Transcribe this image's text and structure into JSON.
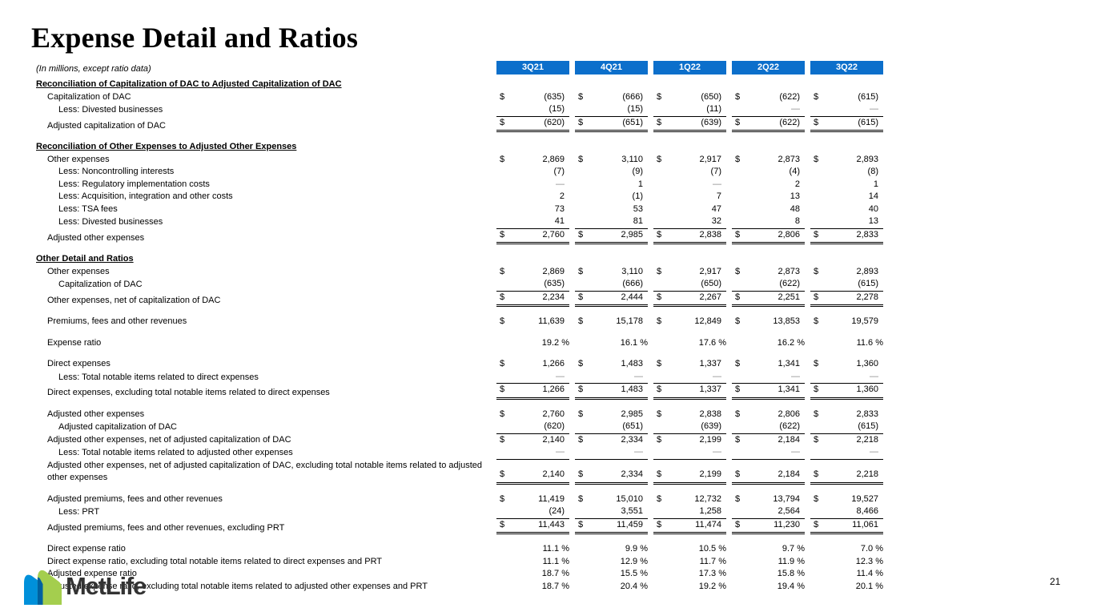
{
  "slide": {
    "title": "Expense Detail and Ratios",
    "note": "(In millions, except ratio data)",
    "page_number": "21",
    "accent_color": "#0C6FCB",
    "logo": {
      "text": "MetLife",
      "blue": "#0090DA",
      "green": "#A4CE4E",
      "dark": "#0061A0"
    }
  },
  "table": {
    "columns": [
      "3Q21",
      "4Q21",
      "1Q22",
      "2Q22",
      "3Q22"
    ],
    "rows": [
      {
        "type": "section",
        "label": "Reconciliation of Capitalization of DAC to Adjusted Capitalization of DAC"
      },
      {
        "type": "data",
        "label": "Capitalization of DAC",
        "indent": 1,
        "dollar": true,
        "values": [
          "(635)",
          "(666)",
          "(650)",
          "(622)",
          "(615)"
        ]
      },
      {
        "type": "data",
        "label": "Less: Divested businesses",
        "indent": 2,
        "rule": true,
        "values": [
          "(15)",
          "(15)",
          "(11)",
          "—",
          "—"
        ]
      },
      {
        "type": "data",
        "label": "Adjusted capitalization of DAC",
        "indent": 1,
        "dollar": true,
        "total": true,
        "values": [
          "(620)",
          "(651)",
          "(639)",
          "(622)",
          "(615)"
        ]
      },
      {
        "type": "section",
        "label": "Reconciliation of Other Expenses to Adjusted Other Expenses",
        "gap": true
      },
      {
        "type": "data",
        "label": "Other expenses",
        "indent": 1,
        "dollar": true,
        "values": [
          "2,869",
          "3,110",
          "2,917",
          "2,873",
          "2,893"
        ]
      },
      {
        "type": "data",
        "label": "Less: Noncontrolling interests",
        "indent": 2,
        "values": [
          "(7)",
          "(9)",
          "(7)",
          "(4)",
          "(8)"
        ]
      },
      {
        "type": "data",
        "label": "Less: Regulatory implementation costs",
        "indent": 2,
        "values": [
          "—",
          "1",
          "—",
          "2",
          "1"
        ]
      },
      {
        "type": "data",
        "label": "Less: Acquisition, integration and other costs",
        "indent": 2,
        "values": [
          "2",
          "(1)",
          "7",
          "13",
          "14"
        ]
      },
      {
        "type": "data",
        "label": "Less: TSA fees",
        "indent": 2,
        "values": [
          "73",
          "53",
          "47",
          "48",
          "40"
        ]
      },
      {
        "type": "data",
        "label": "Less: Divested businesses",
        "indent": 2,
        "rule": true,
        "values": [
          "41",
          "81",
          "32",
          "8",
          "13"
        ]
      },
      {
        "type": "data",
        "label": "Adjusted other expenses",
        "indent": 1,
        "dollar": true,
        "total": true,
        "values": [
          "2,760",
          "2,985",
          "2,838",
          "2,806",
          "2,833"
        ]
      },
      {
        "type": "section",
        "label": "Other Detail and Ratios",
        "gap": true
      },
      {
        "type": "data",
        "label": "Other expenses",
        "indent": 1,
        "dollar": true,
        "values": [
          "2,869",
          "3,110",
          "2,917",
          "2,873",
          "2,893"
        ]
      },
      {
        "type": "data",
        "label": "Capitalization of DAC",
        "indent": 2,
        "rule": true,
        "values": [
          "(635)",
          "(666)",
          "(650)",
          "(622)",
          "(615)"
        ]
      },
      {
        "type": "data",
        "label": "Other expenses, net of capitalization of DAC",
        "indent": 1,
        "dollar": true,
        "total": true,
        "values": [
          "2,234",
          "2,444",
          "2,267",
          "2,251",
          "2,278"
        ]
      },
      {
        "type": "data",
        "label": "Premiums, fees and other revenues",
        "indent": 1,
        "dollar": true,
        "gap": true,
        "values": [
          "11,639",
          "15,178",
          "12,849",
          "13,853",
          "19,579"
        ]
      },
      {
        "type": "data",
        "label": "Expense ratio",
        "indent": 1,
        "gap": true,
        "values": [
          "19.2 %",
          "16.1 %",
          "17.6 %",
          "16.2 %",
          "11.6 %"
        ]
      },
      {
        "type": "data",
        "label": "Direct expenses",
        "indent": 1,
        "dollar": true,
        "gap": true,
        "values": [
          "1,266",
          "1,483",
          "1,337",
          "1,341",
          "1,360"
        ]
      },
      {
        "type": "data",
        "label": "Less: Total notable items related to direct expenses",
        "indent": 2,
        "rule": true,
        "values": [
          "—",
          "—",
          "—",
          "—",
          "—"
        ]
      },
      {
        "type": "data",
        "label": "Direct expenses, excluding total notable items related to direct expenses",
        "indent": 1,
        "dollar": true,
        "total": true,
        "values": [
          "1,266",
          "1,483",
          "1,337",
          "1,341",
          "1,360"
        ]
      },
      {
        "type": "data",
        "label": "Adjusted other expenses",
        "indent": 1,
        "dollar": true,
        "gap": true,
        "values": [
          "2,760",
          "2,985",
          "2,838",
          "2,806",
          "2,833"
        ]
      },
      {
        "type": "data",
        "label": "Adjusted capitalization of DAC",
        "indent": 2,
        "rule": true,
        "values": [
          "(620)",
          "(651)",
          "(639)",
          "(622)",
          "(615)"
        ]
      },
      {
        "type": "data",
        "label": "Adjusted other expenses, net of adjusted capitalization of DAC",
        "indent": 1,
        "dollar": true,
        "values": [
          "2,140",
          "2,334",
          "2,199",
          "2,184",
          "2,218"
        ]
      },
      {
        "type": "data",
        "label": "Less: Total notable items related to adjusted other expenses",
        "indent": 2,
        "rule": true,
        "values": [
          "—",
          "—",
          "—",
          "—",
          "—"
        ]
      },
      {
        "type": "data",
        "label": "Adjusted other expenses, net of adjusted capitalization of DAC, excluding total notable items related to adjusted other expenses",
        "indent": 1,
        "dollar": true,
        "total": true,
        "values": [
          "2,140",
          "2,334",
          "2,199",
          "2,184",
          "2,218"
        ]
      },
      {
        "type": "data",
        "label": "Adjusted premiums, fees and other revenues",
        "indent": 1,
        "dollar": true,
        "gap": true,
        "values": [
          "11,419",
          "15,010",
          "12,732",
          "13,794",
          "19,527"
        ]
      },
      {
        "type": "data",
        "label": "Less: PRT",
        "indent": 2,
        "rule": true,
        "values": [
          "(24)",
          "3,551",
          "1,258",
          "2,564",
          "8,466"
        ]
      },
      {
        "type": "data",
        "label": "Adjusted premiums, fees and other revenues, excluding PRT",
        "indent": 1,
        "dollar": true,
        "total": true,
        "values": [
          "11,443",
          "11,459",
          "11,474",
          "11,230",
          "11,061"
        ]
      },
      {
        "type": "data",
        "label": "Direct expense ratio",
        "indent": 1,
        "gap": true,
        "values": [
          "11.1 %",
          "9.9 %",
          "10.5 %",
          "9.7 %",
          "7.0 %"
        ]
      },
      {
        "type": "data",
        "label": "Direct expense ratio, excluding total notable items related to direct expenses and PRT",
        "indent": 1,
        "values": [
          "11.1 %",
          "12.9 %",
          "11.7 %",
          "11.9 %",
          "12.3 %"
        ]
      },
      {
        "type": "data",
        "label": "Adjusted expense ratio",
        "indent": 1,
        "values": [
          "18.7 %",
          "15.5 %",
          "17.3 %",
          "15.8 %",
          "11.4 %"
        ]
      },
      {
        "type": "data",
        "label": "Adjusted expense ratio, excluding total notable items related to adjusted other expenses and PRT",
        "indent": 1,
        "values": [
          "18.7 %",
          "20.4 %",
          "19.2 %",
          "19.4 %",
          "20.1 %"
        ]
      }
    ]
  }
}
